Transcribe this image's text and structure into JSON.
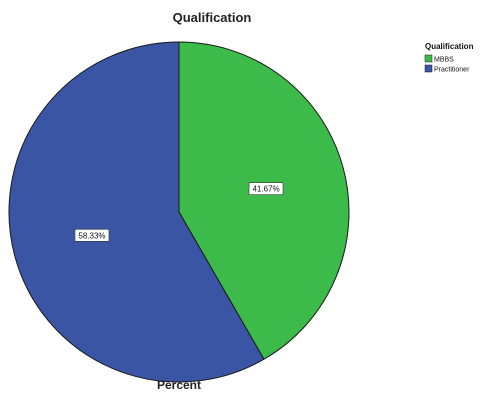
{
  "chart_data": {
    "type": "pie",
    "title": "Qualification",
    "xlabel": "Percent",
    "legend_title": "Qualification",
    "legend_placement": "top-right",
    "slices": [
      {
        "label": "MBBS",
        "value": 41.67,
        "display": "41.67%",
        "color": "#3dbb4a"
      },
      {
        "label": "Practitioner",
        "value": 58.33,
        "display": "58.33%",
        "color": "#3a55a3"
      }
    ]
  }
}
